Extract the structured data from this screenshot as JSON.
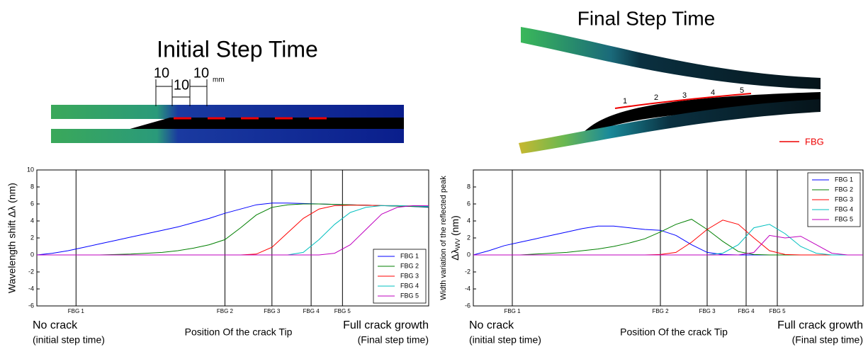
{
  "illustrations": {
    "initial": {
      "title": "Initial Step Time",
      "dims": [
        "10",
        "10",
        "10"
      ],
      "unit": "mm"
    },
    "final": {
      "title": "Final Step Time",
      "sensors": [
        "1",
        "2",
        "3",
        "4",
        "5"
      ],
      "legend": "FBG"
    }
  },
  "chart_data": [
    {
      "type": "line",
      "ylabel": "Wavelength shift Δλ (nm)",
      "xlabel": "Position Of the crack Tip",
      "left_note": [
        "No crack",
        "(initial step time)"
      ],
      "right_note": [
        "Full crack growth",
        "(Final step time)"
      ],
      "x": [
        0,
        2,
        4,
        6,
        8,
        10,
        12,
        14,
        16,
        18,
        20,
        22,
        24,
        26,
        28,
        30,
        32,
        34,
        36,
        38,
        40,
        42,
        44,
        46,
        48,
        50
      ],
      "xlim": [
        0,
        50
      ],
      "ylim": [
        -6,
        10
      ],
      "yticks": [
        -6,
        -4,
        -2,
        0,
        2,
        4,
        6,
        8,
        10
      ],
      "legend": "lower right",
      "markers": [
        {
          "label": "FBG 1",
          "x": 5
        },
        {
          "label": "FBG 2",
          "x": 24
        },
        {
          "label": "FBG 3",
          "x": 30
        },
        {
          "label": "FBG 4",
          "x": 35
        },
        {
          "label": "FBG 5",
          "x": 39
        }
      ],
      "series": [
        {
          "name": "FBG 1",
          "color": "#0000ff",
          "values": [
            0,
            0.2,
            0.5,
            0.9,
            1.3,
            1.7,
            2.1,
            2.5,
            2.9,
            3.3,
            3.8,
            4.3,
            4.9,
            5.4,
            5.9,
            6.1,
            6.1,
            6.05,
            6.0,
            5.95,
            5.9,
            5.85,
            5.8,
            5.75,
            5.7,
            5.6
          ]
        },
        {
          "name": "FBG 2",
          "color": "#007f00",
          "values": [
            0,
            0,
            0,
            0,
            0,
            0.05,
            0.1,
            0.2,
            0.3,
            0.5,
            0.8,
            1.2,
            1.8,
            3.2,
            4.7,
            5.6,
            5.9,
            6.0,
            6.0,
            5.95,
            5.9,
            5.85,
            5.8,
            5.75,
            5.7,
            5.65
          ]
        },
        {
          "name": "FBG 3",
          "color": "#ff0000",
          "values": [
            0,
            0,
            0,
            0,
            0,
            0,
            0,
            0,
            0,
            0,
            0,
            0,
            0,
            0,
            0.1,
            0.9,
            2.6,
            4.3,
            5.4,
            5.8,
            5.85,
            5.85,
            5.8,
            5.8,
            5.75,
            5.7
          ]
        },
        {
          "name": "FBG 4",
          "color": "#00bfbf",
          "values": [
            0,
            0,
            0,
            0,
            0,
            0,
            0,
            0,
            0,
            0,
            0,
            0,
            0,
            0,
            0,
            0,
            0,
            0.3,
            1.8,
            3.6,
            5.0,
            5.6,
            5.8,
            5.8,
            5.75,
            5.7
          ]
        },
        {
          "name": "FBG 5",
          "color": "#bf00bf",
          "values": [
            0,
            0,
            0,
            0,
            0,
            0,
            0,
            0,
            0,
            0,
            0,
            0,
            0,
            0,
            0,
            0,
            0,
            0,
            0,
            0.2,
            1.2,
            3.0,
            4.8,
            5.6,
            5.8,
            5.8
          ]
        }
      ]
    },
    {
      "type": "line",
      "ylabel": "Width variation of the reflected peak",
      "ylabel_parts": [
        "Δλ",
        "WV",
        " (nm)"
      ],
      "xlabel": "Position Of the crack Tip",
      "left_note": [
        "No crack",
        "(initial step time)"
      ],
      "right_note": [
        "Full crack growth",
        "(Final step time)"
      ],
      "x": [
        0,
        2,
        4,
        6,
        8,
        10,
        12,
        14,
        16,
        18,
        20,
        22,
        24,
        26,
        28,
        30,
        32,
        34,
        36,
        38,
        40,
        42,
        44,
        46,
        48,
        50
      ],
      "xlim": [
        0,
        50
      ],
      "ylim": [
        -6,
        10
      ],
      "yticks": [
        -6,
        -4,
        -2,
        0,
        2,
        4,
        6,
        8
      ],
      "legend": "upper right",
      "markers": [
        {
          "label": "FBG 1",
          "x": 5
        },
        {
          "label": "FBG 2",
          "x": 24
        },
        {
          "label": "FBG 3",
          "x": 30
        },
        {
          "label": "FBG 4",
          "x": 35
        },
        {
          "label": "FBG 5",
          "x": 39
        }
      ],
      "series": [
        {
          "name": "FBG 1",
          "color": "#0000ff",
          "values": [
            0,
            0.5,
            1.1,
            1.5,
            1.9,
            2.3,
            2.7,
            3.1,
            3.4,
            3.4,
            3.2,
            3.0,
            2.9,
            2.3,
            1.2,
            0.3,
            0.05,
            0,
            0,
            0,
            0,
            0,
            0,
            0,
            0,
            0
          ]
        },
        {
          "name": "FBG 2",
          "color": "#007f00",
          "values": [
            0,
            0,
            0,
            0,
            0.1,
            0.2,
            0.3,
            0.5,
            0.7,
            1.0,
            1.4,
            1.9,
            2.7,
            3.6,
            4.2,
            3.0,
            1.6,
            0.4,
            0.05,
            0,
            0,
            0,
            0,
            0,
            0,
            0
          ]
        },
        {
          "name": "FBG 3",
          "color": "#ff0000",
          "values": [
            0,
            0,
            0,
            0,
            0,
            0,
            0,
            0,
            0,
            0,
            0,
            0,
            0.05,
            0.3,
            1.5,
            3.0,
            4.1,
            3.6,
            2.0,
            0.5,
            0.05,
            0,
            0,
            0,
            0,
            0
          ]
        },
        {
          "name": "FBG 4",
          "color": "#00bfbf",
          "values": [
            0,
            0,
            0,
            0,
            0,
            0,
            0,
            0,
            0,
            0,
            0,
            0,
            0,
            0,
            0,
            0,
            0.2,
            1.2,
            3.2,
            3.6,
            2.5,
            1.0,
            0.2,
            0,
            0,
            0
          ]
        },
        {
          "name": "FBG 5",
          "color": "#bf00bf",
          "values": [
            0,
            0,
            0,
            0,
            0,
            0,
            0,
            0,
            0,
            0,
            0,
            0,
            0,
            0,
            0,
            0,
            0,
            0,
            0.3,
            2.3,
            2.0,
            2.2,
            1.2,
            0.2,
            0,
            0
          ]
        }
      ]
    }
  ]
}
